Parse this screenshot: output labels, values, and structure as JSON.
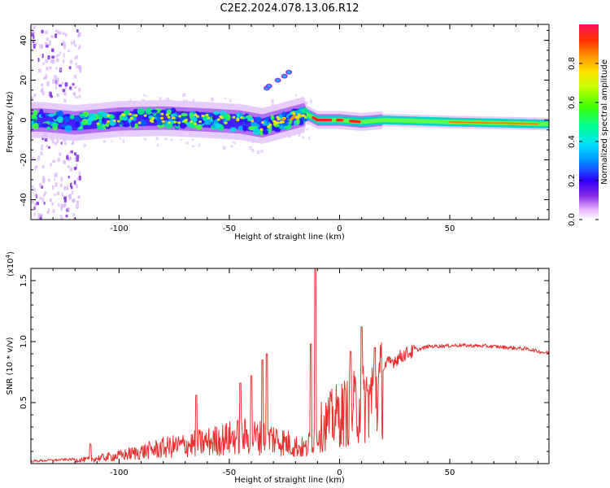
{
  "title": "C2E2.2024.078.13.06.R12",
  "colorbar": {
    "label": "Normalized spectral amplitude",
    "ticks": [
      "0.0",
      "0.2",
      "0.4",
      "0.6",
      "0.8"
    ],
    "range": [
      0,
      1
    ]
  },
  "chart_data": [
    {
      "type": "heatmap",
      "name": "spectrogram",
      "xlabel": "Height of straight line (km)",
      "ylabel": "Frequency (Hz)",
      "xlim": [
        -140,
        95
      ],
      "ylim": [
        -50,
        48
      ],
      "xticks": [
        "-100",
        "-50",
        "0",
        "50"
      ],
      "yticks": [
        "-40",
        "-20",
        "0",
        "20",
        "40"
      ],
      "ridge": [
        {
          "x": -135,
          "f": 0.0
        },
        {
          "x": -120,
          "f": -1.5
        },
        {
          "x": -100,
          "f": 0.5
        },
        {
          "x": -80,
          "f": 1.0
        },
        {
          "x": -60,
          "f": 0.0
        },
        {
          "x": -45,
          "f": -1.0
        },
        {
          "x": -35,
          "f": -3.0
        },
        {
          "x": -25,
          "f": 0.0
        },
        {
          "x": -15,
          "f": 3.0
        },
        {
          "x": -10,
          "f": 0.0
        },
        {
          "x": 0,
          "f": 0.0
        },
        {
          "x": 10,
          "f": -1.0
        },
        {
          "x": 20,
          "f": 0.0
        },
        {
          "x": 50,
          "f": -1.0
        },
        {
          "x": 93,
          "f": -2.0
        }
      ],
      "harmonic_dots": [
        {
          "x": -33,
          "f": 16
        },
        {
          "x": -32,
          "f": 17
        },
        {
          "x": -28,
          "f": 20
        },
        {
          "x": -25,
          "f": 22
        },
        {
          "x": -23,
          "f": 24
        }
      ]
    },
    {
      "type": "line",
      "name": "snr",
      "xlabel": "Height of straight line (km)",
      "ylabel": "SNR (10 * v/v)",
      "yscale_label": "(x10",
      "yscale_exp": "4",
      "xlim": [
        -140,
        95
      ],
      "ylim": [
        0,
        1.6
      ],
      "xticks": [
        "-100",
        "-50",
        "0",
        "50"
      ],
      "yticks": [
        "0.5",
        "1.0",
        "1.5"
      ],
      "color": "#e8302f",
      "envelope": [
        {
          "x": -140,
          "y": 0.02
        },
        {
          "x": -115,
          "y": 0.04
        },
        {
          "x": -100,
          "y": 0.08
        },
        {
          "x": -80,
          "y": 0.16
        },
        {
          "x": -60,
          "y": 0.22
        },
        {
          "x": -45,
          "y": 0.28
        },
        {
          "x": -30,
          "y": 0.26
        },
        {
          "x": -20,
          "y": 0.18
        },
        {
          "x": -15,
          "y": 0.15
        },
        {
          "x": -12,
          "y": 0.28
        },
        {
          "x": -8,
          "y": 0.38
        },
        {
          "x": -2,
          "y": 0.48
        },
        {
          "x": 5,
          "y": 0.55
        },
        {
          "x": 12,
          "y": 0.63
        },
        {
          "x": 20,
          "y": 0.8
        },
        {
          "x": 30,
          "y": 0.9
        },
        {
          "x": 40,
          "y": 0.96
        },
        {
          "x": 55,
          "y": 0.97
        },
        {
          "x": 70,
          "y": 0.96
        },
        {
          "x": 85,
          "y": 0.94
        },
        {
          "x": 93,
          "y": 0.91
        }
      ],
      "spikes": [
        {
          "x": -113,
          "y": 0.16
        },
        {
          "x": -65,
          "y": 0.56
        },
        {
          "x": -45,
          "y": 0.66
        },
        {
          "x": -40,
          "y": 0.72
        },
        {
          "x": -35,
          "y": 0.85
        },
        {
          "x": -33,
          "y": 0.9
        },
        {
          "x": -11,
          "y": 1.6
        },
        {
          "x": -13,
          "y": 0.98
        },
        {
          "x": 10,
          "y": 1.12
        },
        {
          "x": 5,
          "y": 0.92
        },
        {
          "x": 16,
          "y": 0.95
        }
      ]
    }
  ]
}
